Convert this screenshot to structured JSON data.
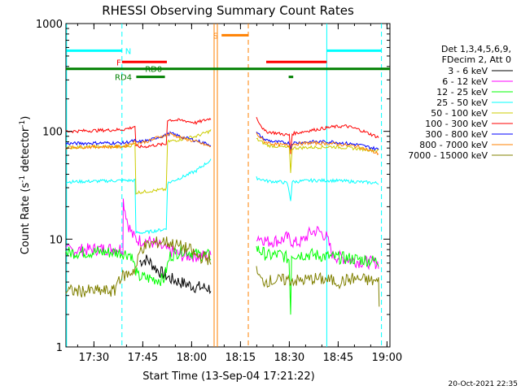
{
  "chart_data": {
    "type": "line",
    "title": "RHESSI Observing Summary Count Rates",
    "xlabel": "Start Time (13-Sep-04 17:21:22)",
    "ylabel_main": "Count Rate (s",
    "ylabel_sup1": "-1",
    "ylabel_mid": " detector",
    "ylabel_sup2": "-1",
    "ylabel_end": ")",
    "footer_date": "20-Oct-2021 22:35",
    "x_unit": "minutes after 17:21:22",
    "xlim": [
      0,
      99.5
    ],
    "ylim": [
      1,
      1000
    ],
    "y_scale": "log",
    "grid": false,
    "x_ticks": [
      {
        "label": "17:30",
        "value": 8.6
      },
      {
        "label": "17:45",
        "value": 23.6
      },
      {
        "label": "18:00",
        "value": 38.6
      },
      {
        "label": "18:15",
        "value": 53.6
      },
      {
        "label": "18:30",
        "value": 68.6
      },
      {
        "label": "18:45",
        "value": 83.6
      },
      {
        "label": "19:00",
        "value": 98.6
      }
    ],
    "y_ticks": [
      {
        "label": "1",
        "value": 1
      },
      {
        "label": "10",
        "value": 10
      },
      {
        "label": "100",
        "value": 100
      },
      {
        "label": "1000",
        "value": 1000
      }
    ],
    "legend_placement": "right",
    "legend_header": [
      "Det 1,3,4,5,6,9,",
      "FDecim 2, Att 0"
    ],
    "series": [
      {
        "name": "3 - 6 keV",
        "color": "#000000",
        "segments": [
          [
            [
              22.6,
              6.2
            ],
            [
              25,
              6.5
            ],
            [
              28,
              5.2
            ],
            [
              32,
              4.3
            ],
            [
              36,
              3.9
            ],
            [
              40,
              3.6
            ],
            [
              44.5,
              3.5
            ]
          ]
        ]
      },
      {
        "name": "6 - 12 keV",
        "color": "#ff00ff",
        "segments": [
          [
            [
              0,
              7.8
            ],
            [
              10,
              8.1
            ],
            [
              17.5,
              8.2
            ],
            [
              17.6,
              23
            ],
            [
              19,
              14
            ],
            [
              20.5,
              10.8
            ],
            [
              22,
              9.8
            ],
            [
              26,
              9.5
            ],
            [
              30,
              8.2
            ],
            [
              36,
              7
            ],
            [
              40,
              7
            ],
            [
              44.5,
              7
            ]
          ],
          [
            [
              58.5,
              10.8
            ],
            [
              62,
              9.5
            ],
            [
              66,
              9.8
            ],
            [
              68,
              10.4
            ],
            [
              70,
              9.2
            ],
            [
              72.5,
              9.5
            ],
            [
              75,
              11.5
            ],
            [
              77.5,
              12
            ],
            [
              80,
              10.5
            ],
            [
              82,
              7
            ],
            [
              90,
              6.2
            ],
            [
              96,
              6
            ]
          ]
        ]
      },
      {
        "name": "12 - 25 keV",
        "color": "#00ff00",
        "segments": [
          [
            [
              0,
              7.5
            ],
            [
              10,
              7.6
            ],
            [
              17,
              7.5
            ],
            [
              20,
              7.2
            ],
            [
              22,
              4.5
            ],
            [
              26,
              4.3
            ],
            [
              30,
              4.2
            ],
            [
              32,
              7
            ],
            [
              36,
              8
            ],
            [
              40,
              7.2
            ],
            [
              44.5,
              7
            ]
          ],
          [
            [
              58.5,
              8.2
            ],
            [
              62,
              7
            ],
            [
              66,
              7.2
            ],
            [
              68.5,
              6.5
            ],
            [
              69,
              2.2
            ],
            [
              69.3,
              7.2
            ],
            [
              75,
              7.2
            ],
            [
              82,
              6.8
            ],
            [
              90,
              6.5
            ],
            [
              96,
              6.2
            ]
          ]
        ]
      },
      {
        "name": "25 - 50 keV",
        "color": "#00ffff",
        "segments": [
          [
            [
              0,
              34
            ],
            [
              10,
              34.5
            ],
            [
              17.5,
              35
            ],
            [
              21.2,
              35
            ],
            [
              21.5,
              11.5
            ],
            [
              24,
              11.5
            ],
            [
              30,
              12.3
            ],
            [
              30.8,
              12.5
            ],
            [
              31.2,
              33
            ],
            [
              36,
              38
            ],
            [
              40,
              43
            ],
            [
              42,
              48
            ],
            [
              44.5,
              54
            ]
          ],
          [
            [
              58.5,
              37
            ],
            [
              62,
              34.5
            ],
            [
              66,
              34
            ],
            [
              68,
              33
            ],
            [
              69,
              23
            ],
            [
              69.5,
              34
            ],
            [
              75,
              35
            ],
            [
              82,
              35
            ],
            [
              90,
              34
            ],
            [
              96,
              33
            ]
          ]
        ]
      },
      {
        "name": "50 - 100 keV",
        "color": "#cccc00",
        "segments": [
          [
            [
              0,
              71
            ],
            [
              10,
              72
            ],
            [
              17.5,
              72
            ],
            [
              20,
              74
            ],
            [
              21.2,
              77
            ],
            [
              21.5,
              27
            ],
            [
              26,
              28
            ],
            [
              30.8,
              29
            ],
            [
              31.2,
              80
            ],
            [
              35,
              84
            ],
            [
              40,
              90
            ],
            [
              44,
              100
            ],
            [
              44.5,
              102
            ]
          ],
          [
            [
              58.5,
              85
            ],
            [
              62,
              74
            ],
            [
              66,
              72
            ],
            [
              68.6,
              70
            ],
            [
              69,
              42
            ],
            [
              69.5,
              70
            ],
            [
              75,
              71
            ],
            [
              82,
              72
            ],
            [
              90,
              69
            ],
            [
              96,
              66
            ]
          ]
        ]
      },
      {
        "name": "100 - 300 keV",
        "color": "#ff0000",
        "segments": [
          [
            [
              0,
              100
            ],
            [
              10,
              102
            ],
            [
              17.5,
              104
            ],
            [
              20,
              108
            ],
            [
              21.2,
              112
            ],
            [
              21.5,
              72
            ],
            [
              24,
              72
            ],
            [
              28,
              75
            ],
            [
              30.8,
              76
            ],
            [
              31.2,
              128
            ],
            [
              36,
              126
            ],
            [
              40,
              120
            ],
            [
              44.5,
              132
            ]
          ],
          [
            [
              58.5,
              134
            ],
            [
              61,
              100
            ],
            [
              64,
              97
            ],
            [
              68.6,
              92
            ],
            [
              69,
              62
            ],
            [
              69.5,
              95
            ],
            [
              75,
              102
            ],
            [
              82,
              110
            ],
            [
              86,
              112
            ],
            [
              90,
              104
            ],
            [
              96,
              88
            ]
          ]
        ]
      },
      {
        "name": "300 - 800 keV",
        "color": "#0000ff",
        "segments": [
          [
            [
              0,
              77
            ],
            [
              10,
              78
            ],
            [
              17.5,
              78
            ],
            [
              21.2,
              82
            ],
            [
              21.5,
              79
            ],
            [
              26,
              83
            ],
            [
              28,
              88
            ],
            [
              30.8,
              92
            ],
            [
              32,
              96
            ],
            [
              36,
              88
            ],
            [
              40,
              82
            ],
            [
              44.5,
              75
            ]
          ],
          [
            [
              58.5,
              97
            ],
            [
              61,
              84
            ],
            [
              64,
              80
            ],
            [
              68.6,
              78
            ],
            [
              69,
              68
            ],
            [
              69.5,
              78
            ],
            [
              75,
              80
            ],
            [
              82,
              80
            ],
            [
              90,
              75
            ],
            [
              96,
              68
            ]
          ]
        ]
      },
      {
        "name": "800 - 7000 keV",
        "color": "#ff8000",
        "segments": [
          [
            [
              0,
              71
            ],
            [
              10,
              72
            ],
            [
              17.5,
              72
            ],
            [
              21.2,
              80
            ],
            [
              21.5,
              77
            ],
            [
              26,
              82
            ],
            [
              28,
              88
            ],
            [
              30.8,
              92
            ],
            [
              32,
              95
            ],
            [
              36,
              86
            ],
            [
              40,
              80
            ],
            [
              44.5,
              72
            ]
          ],
          [
            [
              58.5,
              95
            ],
            [
              61,
              80
            ],
            [
              64,
              76
            ],
            [
              68.6,
              74
            ],
            [
              69,
              65
            ],
            [
              69.5,
              76
            ],
            [
              75,
              78
            ],
            [
              82,
              77
            ],
            [
              90,
              72
            ],
            [
              96,
              62
            ]
          ]
        ]
      },
      {
        "name": "7000 - 15000 keV",
        "color": "#808000",
        "segments": [
          [
            [
              0,
              3.3
            ],
            [
              10,
              3.3
            ],
            [
              15,
              3.3
            ],
            [
              16,
              4.3
            ],
            [
              18,
              4.6
            ],
            [
              19.5,
              4.8
            ],
            [
              21.5,
              5.4
            ],
            [
              23,
              8.2
            ],
            [
              26,
              9
            ],
            [
              30,
              9.6
            ],
            [
              34,
              8.8
            ],
            [
              38,
              8
            ],
            [
              40,
              7
            ],
            [
              44.5,
              6.5
            ]
          ],
          [
            [
              58.5,
              5
            ],
            [
              60,
              4.1
            ],
            [
              64,
              4.1
            ],
            [
              68,
              4.2
            ],
            [
              72,
              4.1
            ],
            [
              76,
              4.3
            ],
            [
              80,
              4.2
            ],
            [
              84,
              4
            ],
            [
              88,
              4.3
            ],
            [
              92,
              4.2
            ],
            [
              96,
              4
            ],
            [
              96.2,
              2.5
            ]
          ]
        ]
      }
    ],
    "vertical_markers": [
      {
        "x": 0.2,
        "color": "#00ffff",
        "style": "solid"
      },
      {
        "x": 17.2,
        "color": "#00ffff",
        "style": "dashed"
      },
      {
        "x": 45.5,
        "color": "#ff8000",
        "style": "solid"
      },
      {
        "x": 46.5,
        "color": "#ff8000",
        "style": "solid"
      },
      {
        "x": 56.0,
        "color": "#ff8000",
        "style": "dashed"
      },
      {
        "x": 80.1,
        "color": "#00ffff",
        "style": "solid"
      },
      {
        "x": 96.9,
        "color": "#00ffff",
        "style": "dashed"
      }
    ],
    "flag_bars": [
      {
        "label": "N",
        "color": "#00ffff",
        "level": 560,
        "ranges": [
          [
            0.2,
            17.2
          ],
          [
            80.1,
            96.9
          ]
        ],
        "label_x": 18.2
      },
      {
        "label": "S",
        "color": "#ff8000",
        "level": 780,
        "ranges": [
          [
            47.8,
            56.0
          ]
        ],
        "label_x": 45.2
      },
      {
        "label": "F",
        "color": "#ff0000",
        "level": 440,
        "ranges": [
          [
            17.2,
            31.0
          ],
          [
            61.5,
            80.1
          ]
        ],
        "label_x": 15.5
      },
      {
        "label": "RD0",
        "color": "#008000",
        "level": 380,
        "ranges": [
          [
            0,
            99.5
          ]
        ],
        "label_x": 24.3
      },
      {
        "label": "RD4",
        "color": "#008000",
        "level": 320,
        "ranges": [
          [
            21.6,
            30.4
          ],
          [
            68.4,
            69.8
          ]
        ],
        "label_x": 15.0
      }
    ]
  }
}
